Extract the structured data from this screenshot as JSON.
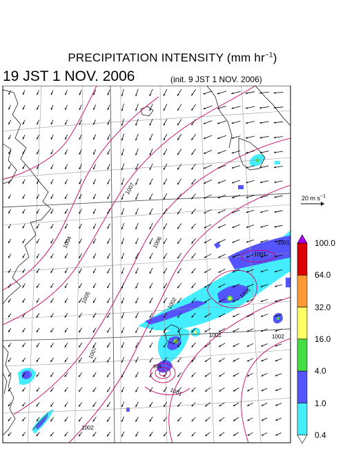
{
  "header": {
    "title": "PRECIPITATION INTENSITY (mm hr",
    "title_exp": "−1",
    "title_close": ")",
    "valid_time": "19 JST 1 NOV. 2006",
    "init_time": "(init. 9 JST 1 NOV. 2006)"
  },
  "wind_scale": {
    "label": "20 m s",
    "exp": "−1"
  },
  "pressure_labels": [
    "1007",
    "1004",
    "1005",
    "1006",
    "1007",
    "1002",
    "1001",
    "1001",
    "1005",
    "1002",
    "1002",
    "999",
    "1001",
    "1002"
  ],
  "colorbar": {
    "levels": [
      "100.0",
      "64.0",
      "32.0",
      "16.0",
      "4.0",
      "1.0",
      "0.4"
    ],
    "colors": [
      "#aa00ee",
      "#dd0000",
      "#ff9933",
      "#ffff66",
      "#44dd44",
      "#5555ff",
      "#44eeff",
      "#ffffff"
    ]
  },
  "colors": {
    "isobar": "#cc0066",
    "coast": "#000000",
    "grid": "#999999"
  }
}
